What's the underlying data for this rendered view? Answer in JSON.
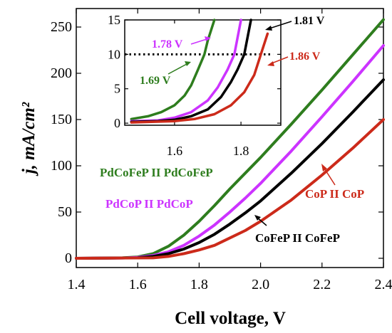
{
  "chart_data": [
    {
      "type": "line",
      "xlabel": "Cell voltage, V",
      "ylabel": "j, mA/cm²",
      "xlim": [
        1.4,
        2.4
      ],
      "ylim": [
        -10,
        270
      ],
      "xticks": [
        "1.4",
        "1.6",
        "1.8",
        "2.0",
        "2.2",
        "2.4"
      ],
      "yticks": [
        "0",
        "50",
        "100",
        "150",
        "200",
        "250"
      ],
      "series": [
        {
          "name": "PdCoFeP II PdCoFeP",
          "color": "#2e7d1e",
          "x": [
            1.4,
            1.5,
            1.55,
            1.6,
            1.65,
            1.7,
            1.75,
            1.8,
            1.85,
            1.9,
            2.0,
            2.1,
            2.2,
            2.3,
            2.4
          ],
          "y": [
            0,
            0.2,
            0.5,
            1.5,
            5,
            13,
            25,
            40,
            57,
            75,
            109,
            145,
            182,
            220,
            258
          ]
        },
        {
          "name": "PdCoP II PdCoP",
          "color": "#cc33ff",
          "x": [
            1.4,
            1.55,
            1.6,
            1.65,
            1.7,
            1.75,
            1.8,
            1.85,
            1.9,
            1.95,
            2.0,
            2.1,
            2.2,
            2.3,
            2.4
          ],
          "y": [
            0,
            0.3,
            1,
            3,
            7,
            14,
            24,
            36,
            50,
            65,
            81,
            116,
            153,
            191,
            230
          ]
        },
        {
          "name": "CoFeP II CoFeP",
          "color": "#000000",
          "x": [
            1.4,
            1.6,
            1.65,
            1.7,
            1.75,
            1.8,
            1.85,
            1.9,
            1.95,
            2.0,
            2.1,
            2.2,
            2.3,
            2.4
          ],
          "y": [
            0,
            0.5,
            2,
            5,
            10,
            17,
            26,
            37,
            49,
            62,
            92,
            124,
            158,
            193
          ]
        },
        {
          "name": "CoP II CoP",
          "color": "#cc2a1a",
          "x": [
            1.4,
            1.65,
            1.7,
            1.75,
            1.8,
            1.85,
            1.9,
            1.95,
            2.0,
            2.1,
            2.2,
            2.3,
            2.4
          ],
          "y": [
            0,
            0.5,
            2,
            5,
            9,
            14,
            22,
            30,
            40,
            63,
            90,
            119,
            150
          ]
        }
      ],
      "annotations": {
        "pdcofep": "PdCoFeP II PdCoFeP",
        "pdcop": "PdCoP II PdCoP",
        "cofep": "CoFeP II CoFeP",
        "cop": "CoP II CoP"
      }
    },
    {
      "type": "line",
      "xlim": [
        1.45,
        1.92
      ],
      "ylim": [
        -0.3,
        15
      ],
      "xticks": [
        "1.6",
        "1.8"
      ],
      "yticks": [
        "0",
        "5",
        "10",
        "15"
      ],
      "reference_line": {
        "y": 10,
        "style": "dotted"
      },
      "series": [
        {
          "color": "#2e7d1e",
          "x": [
            1.47,
            1.52,
            1.56,
            1.6,
            1.63,
            1.65,
            1.67,
            1.69,
            1.7,
            1.72
          ],
          "y": [
            0.6,
            1.0,
            1.6,
            2.6,
            4.0,
            5.5,
            7.7,
            10,
            12,
            15
          ]
        },
        {
          "color": "#cc33ff",
          "x": [
            1.47,
            1.55,
            1.6,
            1.65,
            1.7,
            1.73,
            1.76,
            1.78,
            1.8
          ],
          "y": [
            0.3,
            0.4,
            0.8,
            1.6,
            3.3,
            5.2,
            7.8,
            10,
            15
          ]
        },
        {
          "color": "#000000",
          "x": [
            1.47,
            1.55,
            1.6,
            1.65,
            1.7,
            1.74,
            1.77,
            1.79,
            1.81,
            1.83
          ],
          "y": [
            0.2,
            0.3,
            0.5,
            1.0,
            2.0,
            3.8,
            6.0,
            7.8,
            10,
            15
          ]
        },
        {
          "color": "#cc2a1a",
          "x": [
            1.47,
            1.6,
            1.66,
            1.72,
            1.77,
            1.81,
            1.84,
            1.86,
            1.88
          ],
          "y": [
            0.1,
            0.3,
            0.6,
            1.3,
            2.6,
            4.5,
            7.0,
            10,
            13
          ]
        }
      ],
      "annotations": {
        "v_pdcofep": "1.69 V",
        "v_pdcop": "1.78 V",
        "v_cofep": "1.81 V",
        "v_cop": "1.86 V"
      }
    }
  ]
}
